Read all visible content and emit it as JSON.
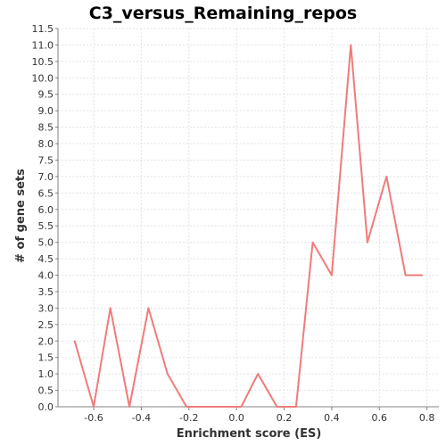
{
  "chart_data": {
    "type": "line",
    "title": "C3_versus_Remaining_repos",
    "xlabel": "Enrichment score (ES)",
    "ylabel": "# of gene sets",
    "xlim": [
      -0.75,
      0.85
    ],
    "ylim": [
      0,
      11.5
    ],
    "xticks": [
      "-0.6",
      "-0.4",
      "-0.2",
      "0.0",
      "0.2",
      "0.4",
      "0.6",
      "0.8"
    ],
    "xtick_values": [
      -0.6,
      -0.4,
      -0.2,
      0.0,
      0.2,
      0.4,
      0.6,
      0.8
    ],
    "yticks": [
      "0.0",
      "0.5",
      "1.0",
      "1.5",
      "2.0",
      "2.5",
      "3.0",
      "3.5",
      "4.0",
      "4.5",
      "5.0",
      "5.5",
      "6.0",
      "6.5",
      "7.0",
      "7.5",
      "8.0",
      "8.5",
      "9.0",
      "9.5",
      "10.0",
      "10.5",
      "11.0",
      "11.5"
    ],
    "ytick_values": [
      0,
      0.5,
      1,
      1.5,
      2,
      2.5,
      3,
      3.5,
      4,
      4.5,
      5,
      5.5,
      6,
      6.5,
      7,
      7.5,
      8,
      8.5,
      9,
      9.5,
      10,
      10.5,
      11,
      11.5
    ],
    "grid": true,
    "series": [
      {
        "color": "#f07b7b",
        "x": [
          -0.68,
          -0.6,
          -0.53,
          -0.45,
          -0.37,
          -0.29,
          -0.21,
          -0.14,
          -0.06,
          0.02,
          0.09,
          0.17,
          0.25,
          0.32,
          0.4,
          0.48,
          0.55,
          0.63,
          0.71,
          0.78
        ],
        "y": [
          2,
          0,
          3,
          0,
          3,
          1,
          0,
          0,
          0,
          0,
          1,
          0,
          0,
          5,
          4,
          11,
          5,
          7,
          4,
          4
        ]
      }
    ]
  }
}
